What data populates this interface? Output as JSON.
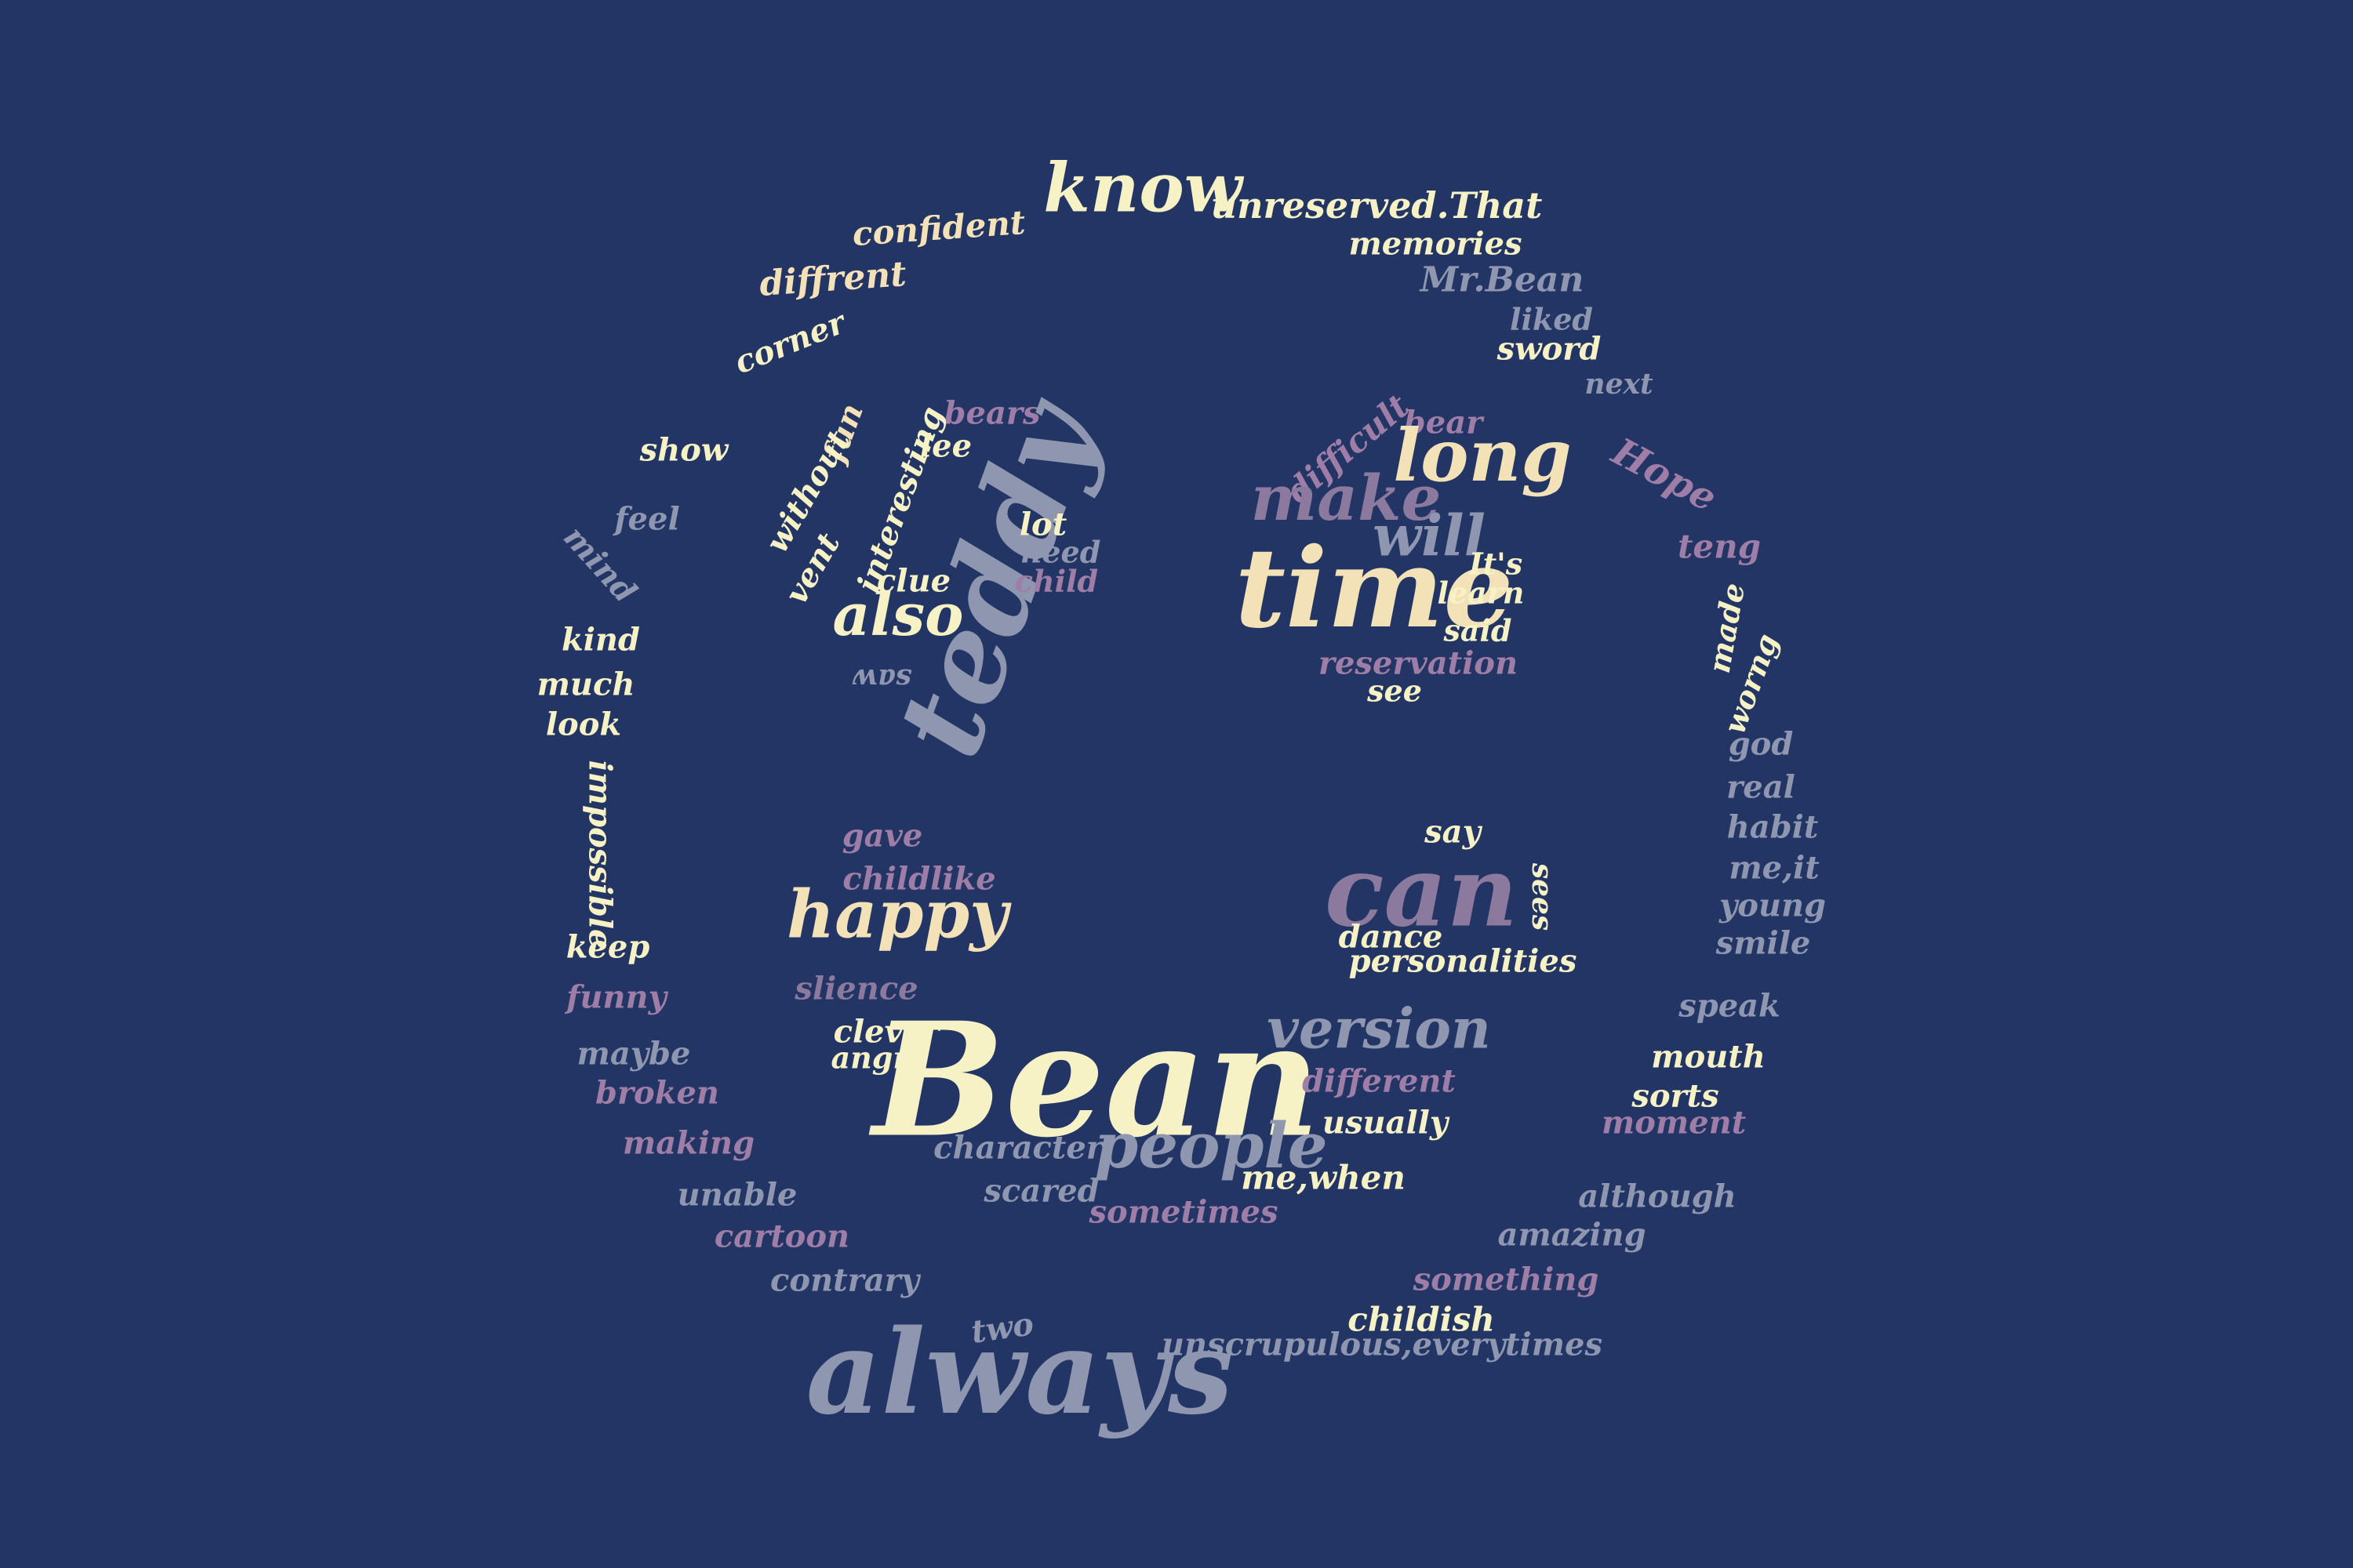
{
  "background": "#233565",
  "palette": {
    "cream": "#F6F2C6",
    "peach": "#F3E1B8",
    "lavender": "#8C7A9E",
    "grey_blue": "#8F97B0",
    "mauve": "#9E7EA6"
  },
  "words": [
    {
      "id": "know",
      "text": "know",
      "tone": "cream",
      "weight": 5
    },
    {
      "id": "unreserved",
      "text": "unreserved.That",
      "tone": "cream",
      "weight": 2
    },
    {
      "id": "confident",
      "text": "confident",
      "tone": "peach",
      "weight": 2
    },
    {
      "id": "memories",
      "text": "memories",
      "tone": "cream",
      "weight": 2
    },
    {
      "id": "diffrent",
      "text": "diffrent",
      "tone": "peach",
      "weight": 2
    },
    {
      "id": "mrbean",
      "text": "Mr.Bean",
      "tone": "grey_blue",
      "weight": 2
    },
    {
      "id": "liked",
      "text": "liked",
      "tone": "grey_blue",
      "weight": 2
    },
    {
      "id": "corner",
      "text": "corner",
      "tone": "cream",
      "weight": 2
    },
    {
      "id": "sword",
      "text": "sword",
      "tone": "cream",
      "weight": 2
    },
    {
      "id": "next",
      "text": "next",
      "tone": "grey_blue",
      "weight": 2
    },
    {
      "id": "show",
      "text": "show",
      "tone": "cream",
      "weight": 2
    },
    {
      "id": "hope",
      "text": "Hope",
      "tone": "mauve",
      "weight": 2
    },
    {
      "id": "feel",
      "text": "feel",
      "tone": "grey_blue",
      "weight": 2
    },
    {
      "id": "mind",
      "text": "mind",
      "tone": "grey_blue",
      "weight": 2
    },
    {
      "id": "teng",
      "text": "teng",
      "tone": "mauve",
      "weight": 2
    },
    {
      "id": "bears",
      "text": "bears",
      "tone": "mauve",
      "weight": 2
    },
    {
      "id": "fun",
      "text": "fun",
      "tone": "peach",
      "weight": 2
    },
    {
      "id": "lee",
      "text": "lee",
      "tone": "cream",
      "weight": 2
    },
    {
      "id": "without",
      "text": "without",
      "tone": "cream",
      "weight": 2
    },
    {
      "id": "interesting",
      "text": "interesting",
      "tone": "cream",
      "weight": 2
    },
    {
      "id": "teddy",
      "text": "teddy",
      "tone": "grey_blue",
      "weight": 6
    },
    {
      "id": "lot",
      "text": "lot",
      "tone": "cream",
      "weight": 2
    },
    {
      "id": "need",
      "text": "need",
      "tone": "grey_blue",
      "weight": 2
    },
    {
      "id": "vent",
      "text": "vent",
      "tone": "cream",
      "weight": 2
    },
    {
      "id": "clue",
      "text": "clue",
      "tone": "cream",
      "weight": 2
    },
    {
      "id": "child",
      "text": "child",
      "tone": "mauve",
      "weight": 2
    },
    {
      "id": "also",
      "text": "also",
      "tone": "cream",
      "weight": 4
    },
    {
      "id": "saw",
      "text": "saw",
      "tone": "grey_blue",
      "weight": 2
    },
    {
      "id": "difficult",
      "text": "difficult",
      "tone": "mauve",
      "weight": 2
    },
    {
      "id": "bear",
      "text": "bear",
      "tone": "mauve",
      "weight": 2
    },
    {
      "id": "long",
      "text": "long",
      "tone": "peach",
      "weight": 5
    },
    {
      "id": "make",
      "text": "make",
      "tone": "lavender",
      "weight": 5
    },
    {
      "id": "will",
      "text": "will",
      "tone": "grey_blue",
      "weight": 5
    },
    {
      "id": "time",
      "text": "time",
      "tone": "peach",
      "weight": 7
    },
    {
      "id": "its",
      "text": "It's",
      "tone": "cream",
      "weight": 2
    },
    {
      "id": "learn",
      "text": "learn",
      "tone": "cream",
      "weight": 2
    },
    {
      "id": "said",
      "text": "said",
      "tone": "cream",
      "weight": 2
    },
    {
      "id": "reservation",
      "text": "reservation",
      "tone": "mauve",
      "weight": 2
    },
    {
      "id": "see",
      "text": "see",
      "tone": "cream",
      "weight": 2
    },
    {
      "id": "made",
      "text": "made",
      "tone": "cream",
      "weight": 2
    },
    {
      "id": "worng",
      "text": "worng",
      "tone": "cream",
      "weight": 2
    },
    {
      "id": "kind",
      "text": "kind",
      "tone": "cream",
      "weight": 2
    },
    {
      "id": "much",
      "text": "much",
      "tone": "cream",
      "weight": 2
    },
    {
      "id": "look",
      "text": "look",
      "tone": "cream",
      "weight": 2
    },
    {
      "id": "god",
      "text": "god",
      "tone": "grey_blue",
      "weight": 2
    },
    {
      "id": "real",
      "text": "real",
      "tone": "grey_blue",
      "weight": 2
    },
    {
      "id": "impossible",
      "text": "impossible",
      "tone": "cream",
      "weight": 2
    },
    {
      "id": "habit",
      "text": "habit",
      "tone": "grey_blue",
      "weight": 2
    },
    {
      "id": "meit",
      "text": "me,it",
      "tone": "grey_blue",
      "weight": 2
    },
    {
      "id": "young",
      "text": "young",
      "tone": "grey_blue",
      "weight": 2
    },
    {
      "id": "smile",
      "text": "smile",
      "tone": "grey_blue",
      "weight": 2
    },
    {
      "id": "gave",
      "text": "gave",
      "tone": "mauve",
      "weight": 2
    },
    {
      "id": "childlike",
      "text": "childlike",
      "tone": "mauve",
      "weight": 2
    },
    {
      "id": "happy",
      "text": "happy",
      "tone": "peach",
      "weight": 5
    },
    {
      "id": "say",
      "text": "say",
      "tone": "cream",
      "weight": 2
    },
    {
      "id": "can",
      "text": "can",
      "tone": "lavender",
      "weight": 6
    },
    {
      "id": "sees",
      "text": "sees",
      "tone": "cream",
      "weight": 2
    },
    {
      "id": "dance",
      "text": "dance",
      "tone": "cream",
      "weight": 2
    },
    {
      "id": "personalities",
      "text": "personalities",
      "tone": "cream",
      "weight": 2
    },
    {
      "id": "keep",
      "text": "keep",
      "tone": "cream",
      "weight": 2
    },
    {
      "id": "funny",
      "text": "funny",
      "tone": "mauve",
      "weight": 2
    },
    {
      "id": "slience",
      "text": "slience",
      "tone": "lavender",
      "weight": 2
    },
    {
      "id": "speak",
      "text": "speak",
      "tone": "grey_blue",
      "weight": 2
    },
    {
      "id": "clever",
      "text": "clever",
      "tone": "cream",
      "weight": 2
    },
    {
      "id": "angry",
      "text": "angry",
      "tone": "cream",
      "weight": 2
    },
    {
      "id": "bean",
      "text": "Bean",
      "tone": "cream",
      "weight": 9
    },
    {
      "id": "version",
      "text": "version",
      "tone": "grey_blue",
      "weight": 4
    },
    {
      "id": "maybe",
      "text": "maybe",
      "tone": "grey_blue",
      "weight": 2
    },
    {
      "id": "mouth",
      "text": "mouth",
      "tone": "cream",
      "weight": 2
    },
    {
      "id": "broken",
      "text": "broken",
      "tone": "mauve",
      "weight": 2
    },
    {
      "id": "different",
      "text": "different",
      "tone": "mauve",
      "weight": 2
    },
    {
      "id": "sorts",
      "text": "sorts",
      "tone": "cream",
      "weight": 2
    },
    {
      "id": "usually",
      "text": "usually",
      "tone": "cream",
      "weight": 2
    },
    {
      "id": "moment",
      "text": "moment",
      "tone": "mauve",
      "weight": 2
    },
    {
      "id": "making",
      "text": "making",
      "tone": "mauve",
      "weight": 2
    },
    {
      "id": "character",
      "text": "character",
      "tone": "grey_blue",
      "weight": 2
    },
    {
      "id": "people",
      "text": "people",
      "tone": "grey_blue",
      "weight": 4
    },
    {
      "id": "mewhen",
      "text": "me,when",
      "tone": "cream",
      "weight": 2
    },
    {
      "id": "scared",
      "text": "scared",
      "tone": "grey_blue",
      "weight": 2
    },
    {
      "id": "unable",
      "text": "unable",
      "tone": "grey_blue",
      "weight": 2
    },
    {
      "id": "although",
      "text": "although",
      "tone": "grey_blue",
      "weight": 2
    },
    {
      "id": "sometimes",
      "text": "sometimes",
      "tone": "mauve",
      "weight": 2
    },
    {
      "id": "cartoon",
      "text": "cartoon",
      "tone": "mauve",
      "weight": 2
    },
    {
      "id": "amazing",
      "text": "amazing",
      "tone": "grey_blue",
      "weight": 2
    },
    {
      "id": "contrary",
      "text": "contrary",
      "tone": "grey_blue",
      "weight": 2
    },
    {
      "id": "something",
      "text": "something",
      "tone": "mauve",
      "weight": 2
    },
    {
      "id": "two",
      "text": "two",
      "tone": "grey_blue",
      "weight": 2
    },
    {
      "id": "childish",
      "text": "childish",
      "tone": "cream",
      "weight": 2
    },
    {
      "id": "unscrupulous",
      "text": "unscrupulous,everytimes",
      "tone": "grey_blue",
      "weight": 2
    },
    {
      "id": "always",
      "text": "always",
      "tone": "grey_blue",
      "weight": 7
    }
  ]
}
